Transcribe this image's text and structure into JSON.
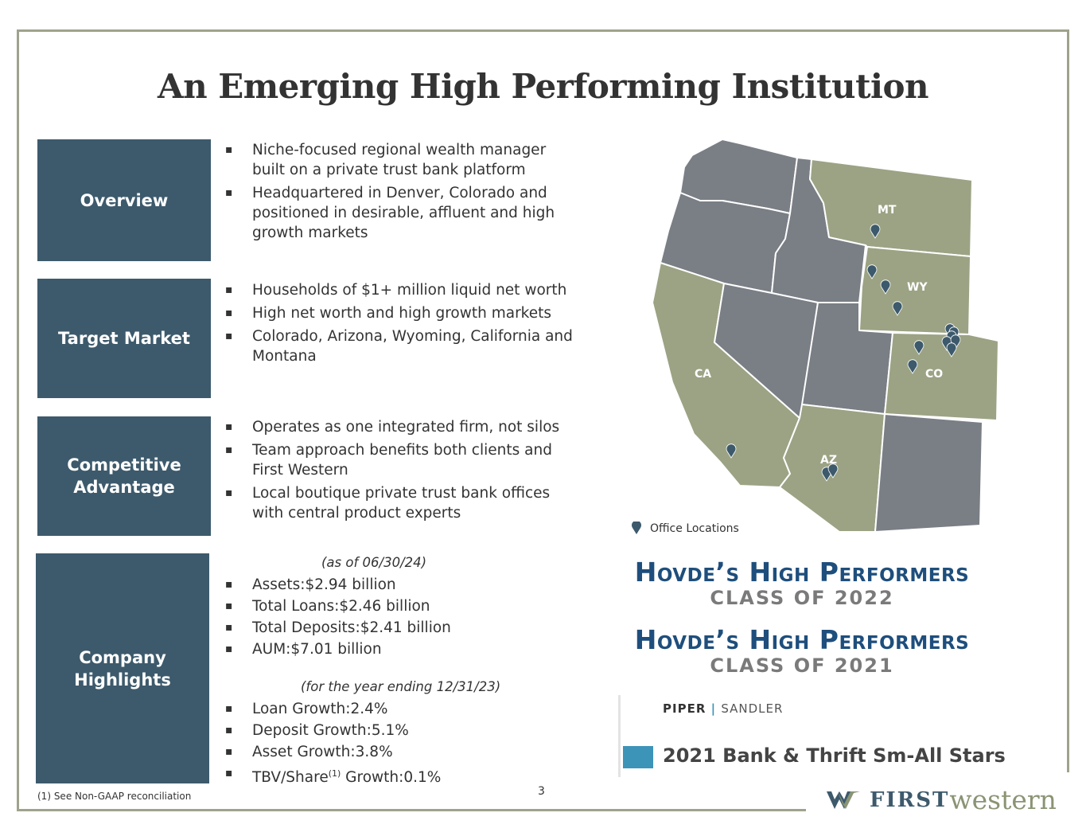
{
  "title": "An Emerging High Performing Institution",
  "sections": {
    "overview": {
      "label": "Overview",
      "bullets": [
        "Niche-focused regional wealth manager built on a private trust bank platform",
        "Headquartered in Denver, Colorado and positioned in desirable, affluent and high growth markets"
      ]
    },
    "target_market": {
      "label": "Target Market",
      "bullets": [
        "Households of $1+ million liquid net worth",
        "High net worth and high growth markets",
        "Colorado, Arizona, Wyoming, California and Montana"
      ]
    },
    "competitive_advantage": {
      "label_line1": "Competitive",
      "label_line2": "Advantage",
      "bullets": [
        "Operates as one integrated firm, not silos",
        "Team approach benefits both clients and First Western",
        "Local boutique private trust bank offices with central product experts"
      ]
    },
    "company_highlights": {
      "label_line1": "Company",
      "label_line2": "Highlights",
      "asof1": "(as of 06/30/24)",
      "metrics1": [
        {
          "label": "Assets:",
          "value": "$2.94 billion"
        },
        {
          "label": "Total Loans:",
          "value": "$2.46 billion"
        },
        {
          "label": "Total Deposits:",
          "value": "$2.41 billion"
        },
        {
          "label": "AUM:",
          "value": "$7.01 billion"
        }
      ],
      "asof2": "(for the year ending 12/31/23)",
      "metrics2": [
        {
          "label": "Loan Growth:",
          "value": "2.4%"
        },
        {
          "label": "Deposit Growth:",
          "value": "5.1%"
        },
        {
          "label": "Asset Growth:",
          "value": "3.8%"
        },
        {
          "label_pre": "TBV/Share",
          "sup": "(1)",
          "label_post": " Growth:",
          "value": "0.1%"
        }
      ]
    }
  },
  "map": {
    "state_labels": {
      "mt": "MT",
      "wy": "WY",
      "co": "CO",
      "ca": "CA",
      "az": "AZ"
    },
    "legend": "Office Locations",
    "colors": {
      "highlight": "#9ba384",
      "other": "#7a7e85",
      "pin": "#3d5a6c"
    }
  },
  "awards": {
    "hovde_2022_title": "Hovde’s High Performers",
    "hovde_2022_class": "CLASS OF 2022",
    "hovde_2021_title": "Hovde’s High Performers",
    "hovde_2021_class": "CLASS OF 2021",
    "piper": "PIPER",
    "sandler": "SANDLER",
    "allstars": "2021 Bank & Thrift Sm-All Stars"
  },
  "footer": {
    "footnote": "(1)  See Non-GAAP reconciliation",
    "page": "3",
    "logo_first": "FIRST",
    "logo_western": "western"
  }
}
